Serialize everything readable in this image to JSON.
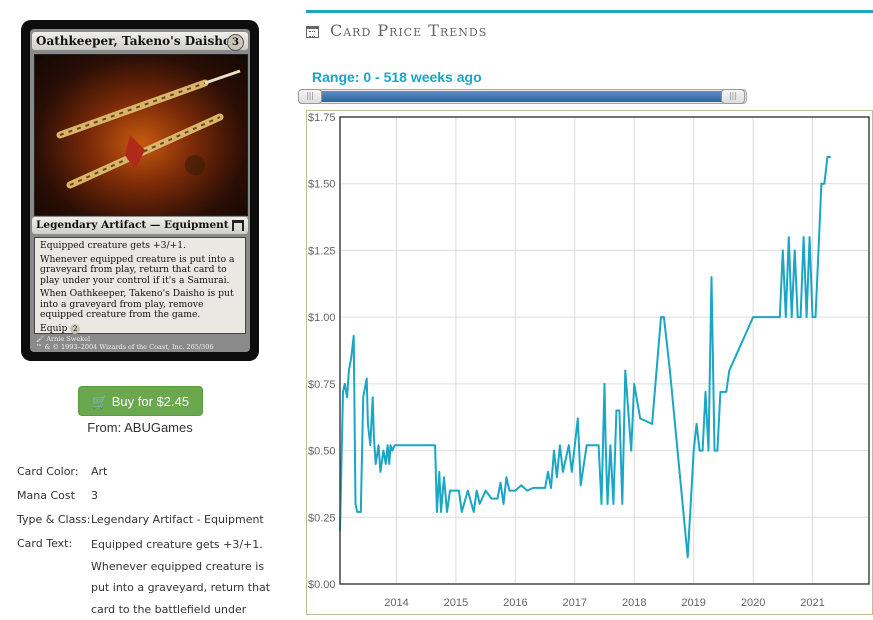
{
  "card": {
    "name": "Oathkeeper, Takeno's Daisho",
    "mana_cost": "3",
    "type_line": "Legendary Artifact — Equipment",
    "rules": [
      "Equipped creature gets +3/+1.",
      "Whenever equipped creature is put into a graveyard from play, return that card to play under your control if it's a Samurai.",
      "When Oathkeeper, Takeno's Daisho is put into a graveyard from play, remove equipped creature from the game."
    ],
    "equip_label": "Equip",
    "equip_cost": "2",
    "artist": "Arnie Swekel",
    "copyright": "™ & © 1993–2004 Wizards of the Coast, Inc. 265/306"
  },
  "buy": {
    "label": "Buy for $2.45",
    "from": "From: ABUGames"
  },
  "details": [
    {
      "label": "Card Color:",
      "value": "Art"
    },
    {
      "label": "Mana Cost",
      "value": "3"
    },
    {
      "label": "Type & Class:",
      "value": "Legendary Artifact - Equipment"
    },
    {
      "label": "Card Text:",
      "value": "Equipped creature gets +3/+1. Whenever equipped creature is put into a graveyard, return that card to the battlefield under"
    }
  ],
  "section_title": "Card Price Trends",
  "range_label": "Range: 0 - 518 weeks ago",
  "slider": {
    "start_fraction": 0.0,
    "end_fraction": 1.0
  },
  "colors": {
    "accent": "#1aa6c4",
    "buy": "#6aa84f",
    "line": "#1aa6c4",
    "slider_fill": "#3b6fb0"
  },
  "chart_data": {
    "type": "line",
    "title": "",
    "xlabel": "",
    "ylabel": "",
    "xlim": [
      2013.05,
      2021.95
    ],
    "ylim": [
      0,
      1.75
    ],
    "x_ticks": [
      "2014",
      "2015",
      "2016",
      "2017",
      "2018",
      "2019",
      "2020",
      "2021"
    ],
    "x_tick_values": [
      2014,
      2015,
      2016,
      2017,
      2018,
      2019,
      2020,
      2021
    ],
    "y_ticks": [
      "$0.00",
      "$0.25",
      "$0.50",
      "$0.75",
      "$1.00",
      "$1.25",
      "$1.50",
      "$1.75"
    ],
    "y_tick_values": [
      0,
      0.25,
      0.5,
      0.75,
      1.0,
      1.25,
      1.5,
      1.75
    ],
    "grid": true,
    "series": [
      {
        "x": [
          2013.05,
          2013.1,
          2013.13,
          2013.17,
          2013.2,
          2013.24,
          2013.28,
          2013.31,
          2013.34,
          2013.38,
          2013.4,
          2013.44,
          2013.5,
          2013.52,
          2013.56,
          2013.6,
          2013.62,
          2013.65,
          2013.7,
          2013.73,
          2013.78,
          2013.82,
          2013.85,
          2013.88,
          2013.9,
          2013.93,
          2013.97,
          2014.0,
          2014.05,
          2014.1,
          2014.3,
          2014.5,
          2014.65,
          2014.68,
          2014.72,
          2014.75,
          2014.8,
          2014.85,
          2014.9,
          2015.0,
          2015.05,
          2015.1,
          2015.2,
          2015.3,
          2015.35,
          2015.4,
          2015.5,
          2015.6,
          2015.7,
          2015.75,
          2015.8,
          2015.85,
          2015.9,
          2016.0,
          2016.1,
          2016.2,
          2016.3,
          2016.4,
          2016.5,
          2016.55,
          2016.6,
          2016.65,
          2016.7,
          2016.75,
          2016.8,
          2016.9,
          2016.95,
          2017.0,
          2017.05,
          2017.1,
          2017.2,
          2017.4,
          2017.45,
          2017.5,
          2017.52,
          2017.55,
          2017.6,
          2017.65,
          2017.7,
          2017.75,
          2017.8,
          2017.85,
          2017.95,
          2018.0,
          2018.1,
          2018.3,
          2018.45,
          2018.5,
          2018.6,
          2018.75,
          2018.9,
          2019.0,
          2019.05,
          2019.1,
          2019.15,
          2019.2,
          2019.25,
          2019.3,
          2019.35,
          2019.4,
          2019.45,
          2019.5,
          2019.55,
          2019.6,
          2019.7,
          2019.8,
          2019.9,
          2020.0,
          2020.1,
          2020.3,
          2020.45,
          2020.5,
          2020.55,
          2020.6,
          2020.65,
          2020.7,
          2020.75,
          2020.8,
          2020.85,
          2020.9,
          2020.95,
          2021.0,
          2021.05,
          2021.1,
          2021.15,
          2021.2,
          2021.25,
          2021.3
        ],
        "values": [
          0.2,
          0.72,
          0.75,
          0.7,
          0.8,
          0.85,
          0.93,
          0.3,
          0.27,
          0.27,
          0.27,
          0.7,
          0.77,
          0.6,
          0.52,
          0.7,
          0.55,
          0.45,
          0.52,
          0.42,
          0.5,
          0.45,
          0.52,
          0.45,
          0.52,
          0.5,
          0.52,
          0.52,
          0.52,
          0.52,
          0.52,
          0.52,
          0.52,
          0.27,
          0.42,
          0.27,
          0.4,
          0.27,
          0.35,
          0.35,
          0.35,
          0.27,
          0.35,
          0.27,
          0.35,
          0.3,
          0.35,
          0.32,
          0.32,
          0.38,
          0.3,
          0.4,
          0.35,
          0.35,
          0.37,
          0.35,
          0.36,
          0.36,
          0.36,
          0.42,
          0.36,
          0.5,
          0.4,
          0.52,
          0.42,
          0.52,
          0.42,
          0.52,
          0.62,
          0.37,
          0.52,
          0.52,
          0.3,
          0.75,
          0.52,
          0.3,
          0.52,
          0.3,
          0.65,
          0.65,
          0.3,
          0.8,
          0.5,
          0.75,
          0.62,
          0.6,
          1.0,
          1.0,
          0.8,
          0.45,
          0.1,
          0.5,
          0.6,
          0.5,
          0.5,
          0.72,
          0.5,
          1.15,
          0.5,
          0.5,
          0.72,
          0.72,
          0.72,
          0.8,
          0.85,
          0.9,
          0.95,
          1.0,
          1.0,
          1.0,
          1.0,
          1.25,
          1.0,
          1.3,
          1.0,
          1.25,
          1.0,
          1.0,
          1.3,
          1.0,
          1.3,
          1.0,
          1.0,
          1.25,
          1.5,
          1.5,
          1.6,
          1.6
        ]
      }
    ]
  }
}
